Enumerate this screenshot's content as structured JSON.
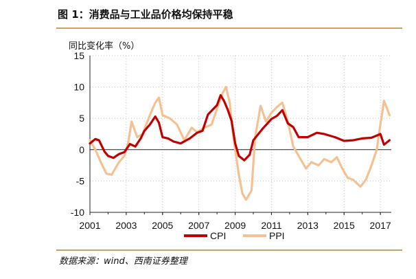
{
  "title": "图 1：消费品与工业品价格均保持平稳",
  "source": "数据来源：wind、西南证券整理",
  "colors": {
    "cpi": "#c00000",
    "ppi": "#f5c193",
    "rule": "#c8a06a"
  },
  "chart_data": {
    "type": "line",
    "title": "",
    "xlabel": "",
    "ylabel": "同比变化率（%）",
    "xlim": [
      2001,
      2017.6
    ],
    "ylim": [
      -10,
      15
    ],
    "yticks": [
      -10,
      -5,
      0,
      5,
      10,
      15
    ],
    "xticks": [
      "2001",
      "2003",
      "2005",
      "2007",
      "2009",
      "2011",
      "2013",
      "2015",
      "2017"
    ],
    "grid": true,
    "legend": "bottom-center",
    "series": [
      {
        "name": "CPI",
        "x": [
          2001.0,
          2001.3,
          2001.5,
          2001.8,
          2002.0,
          2002.3,
          2002.6,
          2002.9,
          2003.2,
          2003.5,
          2003.8,
          2004.0,
          2004.3,
          2004.6,
          2004.8,
          2005.0,
          2005.3,
          2005.6,
          2006.0,
          2006.5,
          2006.9,
          2007.2,
          2007.5,
          2007.8,
          2008.0,
          2008.2,
          2008.4,
          2008.6,
          2008.8,
          2009.0,
          2009.2,
          2009.5,
          2009.8,
          2010.0,
          2010.5,
          2011.0,
          2011.3,
          2011.6,
          2011.9,
          2012.2,
          2012.5,
          2013.0,
          2013.5,
          2013.9,
          2014.5,
          2015.0,
          2015.5,
          2016.0,
          2016.5,
          2017.0,
          2017.2,
          2017.5
        ],
        "y": [
          1.0,
          1.7,
          1.5,
          -0.3,
          -1.0,
          -1.3,
          -0.7,
          -0.4,
          0.9,
          0.5,
          1.8,
          3.0,
          4.0,
          5.3,
          4.3,
          2.0,
          1.8,
          1.3,
          1.0,
          1.8,
          2.7,
          3.0,
          5.6,
          6.5,
          7.1,
          8.7,
          7.7,
          6.3,
          4.6,
          1.0,
          -1.0,
          -1.7,
          -0.8,
          1.5,
          3.3,
          4.9,
          5.4,
          6.3,
          4.2,
          3.6,
          2.0,
          2.0,
          2.7,
          2.5,
          2.0,
          1.4,
          1.5,
          1.8,
          1.9,
          2.5,
          0.8,
          1.5
        ]
      },
      {
        "name": "PPI",
        "x": [
          2001.0,
          2001.3,
          2001.6,
          2001.9,
          2002.2,
          2002.6,
          2002.9,
          2003.1,
          2003.3,
          2003.6,
          2003.9,
          2004.3,
          2004.6,
          2004.8,
          2005.0,
          2005.4,
          2005.8,
          2006.2,
          2006.6,
          2006.9,
          2007.3,
          2007.7,
          2008.0,
          2008.3,
          2008.5,
          2008.7,
          2008.9,
          2009.2,
          2009.4,
          2009.6,
          2009.9,
          2010.1,
          2010.4,
          2010.7,
          2011.0,
          2011.3,
          2011.6,
          2011.9,
          2012.2,
          2012.6,
          2012.9,
          2013.2,
          2013.6,
          2013.9,
          2014.3,
          2014.6,
          2014.9,
          2015.2,
          2015.5,
          2015.9,
          2016.2,
          2016.5,
          2016.8,
          2017.0,
          2017.2,
          2017.5
        ],
        "y": [
          1.5,
          0.0,
          -2.0,
          -3.8,
          -4.0,
          -2.0,
          -1.0,
          1.0,
          4.5,
          2.0,
          2.5,
          5.5,
          7.5,
          8.3,
          5.5,
          5.0,
          4.0,
          1.5,
          3.5,
          2.8,
          3.5,
          4.0,
          6.5,
          9.0,
          10.0,
          7.5,
          2.0,
          -4.0,
          -7.0,
          -8.0,
          -6.5,
          2.0,
          7.0,
          4.5,
          5.9,
          6.8,
          7.5,
          4.5,
          0.5,
          -1.5,
          -3.0,
          -2.0,
          -2.5,
          -1.5,
          -2.0,
          -1.2,
          -3.0,
          -4.5,
          -4.8,
          -5.9,
          -4.8,
          -2.6,
          0.0,
          4.0,
          7.8,
          5.5
        ]
      }
    ]
  }
}
